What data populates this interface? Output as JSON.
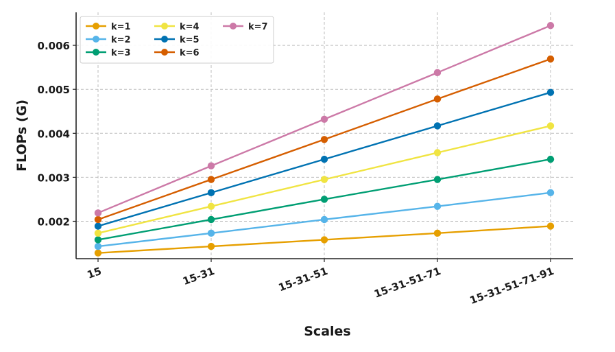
{
  "chart_data": {
    "type": "line",
    "title": "",
    "xlabel": "Scales",
    "ylabel": "FLOPs (G)",
    "categories": [
      "15",
      "15-31",
      "15-31-51",
      "15-31-51-71",
      "15-31-51-71-91"
    ],
    "ylim": [
      0.00115,
      0.00675
    ],
    "yticks": [
      0.002,
      0.003,
      0.004,
      0.005,
      0.006
    ],
    "ytick_labels": [
      "0.002",
      "0.003",
      "0.004",
      "0.005",
      "0.006"
    ],
    "grid": true,
    "legend_position": "top-left",
    "series": [
      {
        "name": "k=1",
        "color": "#E69F00",
        "values": [
          0.00128,
          0.00143,
          0.00158,
          0.00173,
          0.00189
        ]
      },
      {
        "name": "k=2",
        "color": "#56B4E9",
        "values": [
          0.00143,
          0.00173,
          0.00204,
          0.00234,
          0.00265
        ]
      },
      {
        "name": "k=3",
        "color": "#009E73",
        "values": [
          0.00158,
          0.00204,
          0.0025,
          0.00295,
          0.00341
        ]
      },
      {
        "name": "k=4",
        "color": "#F0E442",
        "values": [
          0.00173,
          0.00234,
          0.00295,
          0.00356,
          0.00417
        ]
      },
      {
        "name": "k=5",
        "color": "#0072B2",
        "values": [
          0.00189,
          0.00265,
          0.00341,
          0.00417,
          0.00493
        ]
      },
      {
        "name": "k=6",
        "color": "#D55E00",
        "values": [
          0.00204,
          0.00295,
          0.00386,
          0.00478,
          0.00569
        ]
      },
      {
        "name": "k=7",
        "color": "#CC79A7",
        "values": [
          0.00219,
          0.00326,
          0.00432,
          0.00538,
          0.00645
        ]
      }
    ]
  }
}
